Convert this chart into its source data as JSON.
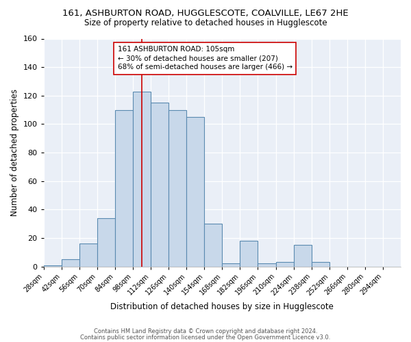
{
  "title": "161, ASHBURTON ROAD, HUGGLESCOTE, COALVILLE, LE67 2HE",
  "subtitle": "Size of property relative to detached houses in Hugglescote",
  "xlabel": "Distribution of detached houses by size in Hugglescote",
  "ylabel": "Number of detached properties",
  "bin_edges": [
    28,
    42,
    56,
    70,
    84,
    98,
    112,
    126,
    140,
    154,
    168,
    182,
    196,
    210,
    224,
    238,
    252,
    266,
    280,
    294,
    308
  ],
  "bar_heights": [
    1,
    5,
    16,
    34,
    110,
    123,
    115,
    110,
    105,
    30,
    2,
    18,
    2,
    3,
    15,
    3,
    0,
    0,
    0,
    0
  ],
  "bar_color": "#c8d8ea",
  "bar_edge_color": "#5a8ab0",
  "property_size": 105,
  "vline_color": "#cc0000",
  "annotation_text": "161 ASHBURTON ROAD: 105sqm\n← 30% of detached houses are smaller (207)\n68% of semi-detached houses are larger (466) →",
  "annotation_box_color": "white",
  "annotation_box_edge": "#cc0000",
  "ylim": [
    0,
    160
  ],
  "yticks": [
    0,
    20,
    40,
    60,
    80,
    100,
    120,
    140,
    160
  ],
  "background_color": "#eaeff7",
  "footer1": "Contains HM Land Registry data © Crown copyright and database right 2024.",
  "footer2": "Contains public sector information licensed under the Open Government Licence v3.0."
}
